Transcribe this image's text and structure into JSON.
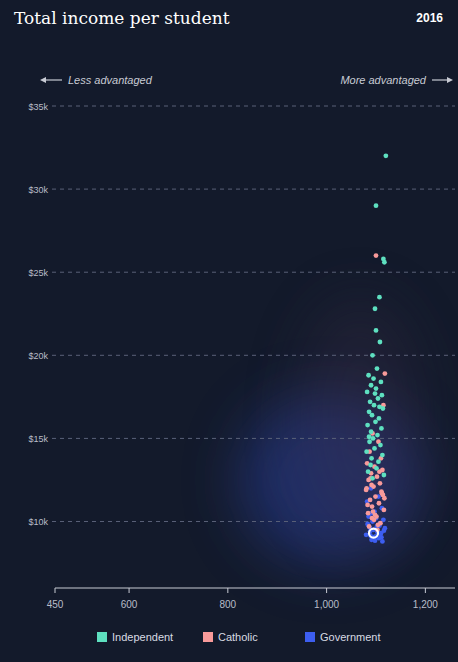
{
  "chart_data": {
    "type": "scatter",
    "title": "Total income per student",
    "subtitle": "2016",
    "annotations": [
      "Less advantaged",
      "More advantaged"
    ],
    "xlim": [
      450,
      1260
    ],
    "ylim": [
      6000,
      35000
    ],
    "xticks": [
      450,
      600,
      800,
      {
        "value": 1000,
        "label": "1,000"
      },
      {
        "value": 1200,
        "label": "1,200"
      }
    ],
    "yticks": [
      {
        "value": 10000,
        "label": "$10k"
      },
      {
        "value": 15000,
        "label": "$15k"
      },
      {
        "value": 20000,
        "label": "$20k"
      },
      {
        "value": 25000,
        "label": "$25k"
      },
      {
        "value": 30000,
        "label": "$30k"
      },
      {
        "value": 35000,
        "label": "$35k"
      }
    ],
    "grid": true,
    "legend": "bottom",
    "marker": "circle",
    "highlight": {
      "x": 1095,
      "y": 9300
    },
    "series": [
      {
        "name": "Independent",
        "color": "#5ee0c0",
        "x": [
          1120,
          1100,
          1115,
          1117,
          1107,
          1098,
          1100,
          1108,
          1093,
          1102,
          1085,
          1095,
          1110,
          1090,
          1100,
          1082,
          1112,
          1104,
          1088,
          1096,
          1114,
          1086,
          1092,
          1106,
          1099,
          1083,
          1111,
          1090,
          1103,
          1094,
          1087,
          1109,
          1097,
          1081,
          1113,
          1091,
          1105,
          1089,
          1101,
          1084,
          1116,
          1093,
          1107,
          1086,
          1098
        ],
        "values": [
          32000,
          29000,
          25800,
          25600,
          23500,
          22800,
          21500,
          20800,
          20000,
          19200,
          18800,
          18600,
          18400,
          18200,
          18000,
          17800,
          17600,
          17400,
          17200,
          17000,
          16800,
          16600,
          16400,
          16200,
          16000,
          15800,
          15600,
          15400,
          15200,
          15000,
          14800,
          14600,
          14400,
          14200,
          14000,
          13800,
          13600,
          13400,
          13200,
          13000,
          12800,
          12600,
          16900,
          15100,
          17700
        ]
      },
      {
        "name": "Catholic",
        "color": "#f89a9a",
        "x": [
          1100,
          1118,
          1115,
          1093,
          1105,
          1087,
          1110,
          1082,
          1097,
          1113,
          1090,
          1102,
          1085,
          1108,
          1095,
          1080,
          1112,
          1099,
          1088,
          1106,
          1092,
          1116,
          1084,
          1101,
          1096,
          1109,
          1086,
          1103,
          1091,
          1114,
          1083,
          1098,
          1107,
          1089,
          1111,
          1094,
          1081,
          1104,
          1117,
          1092
        ],
        "values": [
          26000,
          18900,
          17000,
          15300,
          14800,
          14200,
          13800,
          13500,
          13300,
          13100,
          12900,
          12700,
          12500,
          12300,
          12100,
          11900,
          11700,
          11500,
          11300,
          11100,
          10900,
          10700,
          10500,
          10300,
          10100,
          9900,
          9700,
          9500,
          12200,
          11600,
          11000,
          10400,
          13000,
          12600,
          11800,
          10600,
          12000,
          9800,
          11400,
          10200
        ]
      },
      {
        "name": "Government",
        "color": "#3d5ef0",
        "x": [
          1090,
          1105,
          1082,
          1112,
          1097,
          1086,
          1100,
          1115,
          1093,
          1108,
          1084,
          1102,
          1118,
          1095,
          1088,
          1110,
          1080,
          1099,
          1106,
          1091,
          1113,
          1087,
          1103,
          1096,
          1083,
          1109,
          1094,
          1116,
          1089,
          1101,
          1085,
          1107,
          1098,
          1092,
          1111
        ],
        "values": [
          12000,
          11500,
          11200,
          10800,
          10600,
          10400,
          10200,
          10100,
          10000,
          9900,
          9800,
          9700,
          9600,
          9500,
          9400,
          9300,
          9200,
          9100,
          9000,
          8900,
          8800,
          9650,
          9350,
          9050,
          9850,
          9250,
          8950,
          9450,
          9150,
          9550,
          10300,
          9750,
          8850,
          10500,
          9050
        ]
      }
    ]
  }
}
